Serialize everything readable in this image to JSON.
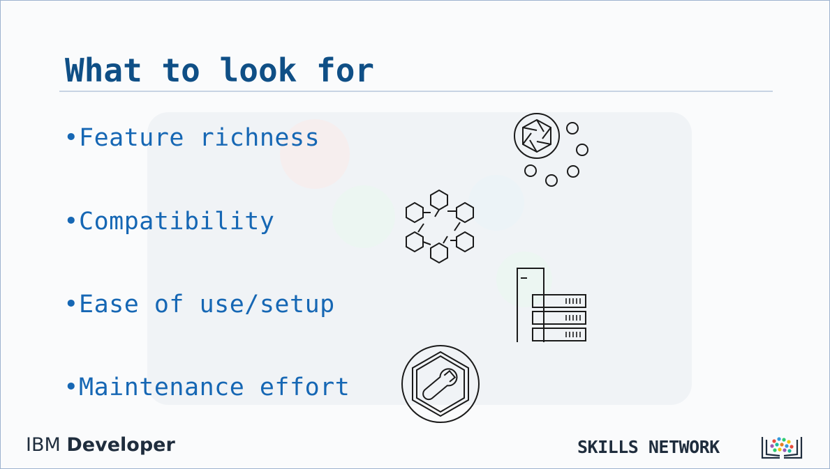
{
  "slide": {
    "title": "What to look for",
    "bullet_glyph": "•",
    "bullets": [
      {
        "text": "Feature richness",
        "icon": "settings-dots-icon"
      },
      {
        "text": "Compatibility",
        "icon": "hexagon-network-icon"
      },
      {
        "text": "Ease of use/setup",
        "icon": "server-rack-icon"
      },
      {
        "text": "Maintenance effort",
        "icon": "wrench-hexagon-icon"
      }
    ]
  },
  "footer": {
    "brand_prefix": "IBM",
    "brand_suffix": "Developer",
    "network_label": "SKILLS NETWORK",
    "network_logo": "skills-network-logo"
  },
  "colors": {
    "title": "#0f4f86",
    "bullet_text": "#1667b4",
    "rule": "#c7d3e3",
    "footer_text": "#1f2d3d"
  }
}
